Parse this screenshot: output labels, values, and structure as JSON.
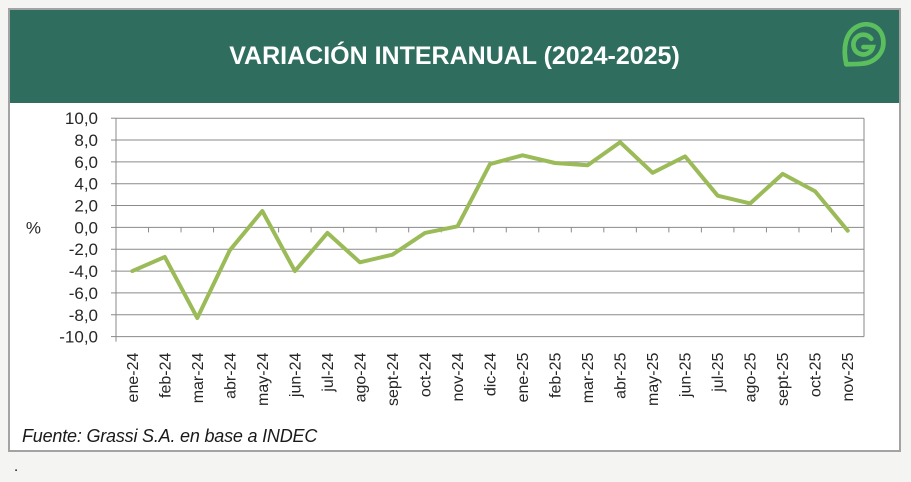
{
  "header": {
    "title": "VARIACIÓN INTERANUAL (2024-2025)",
    "bg_color": "#2f6e5e",
    "logo": "grassi-leaf-g-logo",
    "logo_color": "#5cbf5e"
  },
  "chart_data": {
    "type": "line",
    "title": "VARIACIÓN INTERANUAL (2024-2025)",
    "xlabel": "",
    "ylabel": "%",
    "ylim": [
      -10,
      10
    ],
    "grid": true,
    "legend": "none",
    "y_ticks": [
      "10,0",
      "8,0",
      "6,0",
      "4,0",
      "2,0",
      "0,0",
      "-2,0",
      "-4,0",
      "-6,0",
      "-8,0",
      "-10,0"
    ],
    "categories": [
      "ene-24",
      "feb-24",
      "mar-24",
      "abr-24",
      "may-24",
      "jun-24",
      "jul-24",
      "ago-24",
      "sept-24",
      "oct-24",
      "nov-24",
      "dic-24",
      "ene-25",
      "feb-25",
      "mar-25",
      "abr-25",
      "may-25",
      "jun-25",
      "jul-25",
      "ago-25",
      "sept-25",
      "oct-25",
      "nov-25"
    ],
    "values": [
      -4.0,
      -2.7,
      -8.3,
      -2.1,
      1.5,
      -4.0,
      -0.5,
      -3.2,
      -2.5,
      -0.5,
      0.1,
      5.8,
      6.6,
      5.9,
      5.7,
      7.8,
      5.0,
      6.5,
      2.9,
      2.2,
      4.9,
      3.3,
      -0.3
    ],
    "series_color": "#9bbb59",
    "grid_color": "#8a8a8a",
    "text_color": "#262626"
  },
  "footer": {
    "source": "Fuente: Grassi S.A. en base a INDEC"
  },
  "page": {
    "stray_text": "."
  }
}
